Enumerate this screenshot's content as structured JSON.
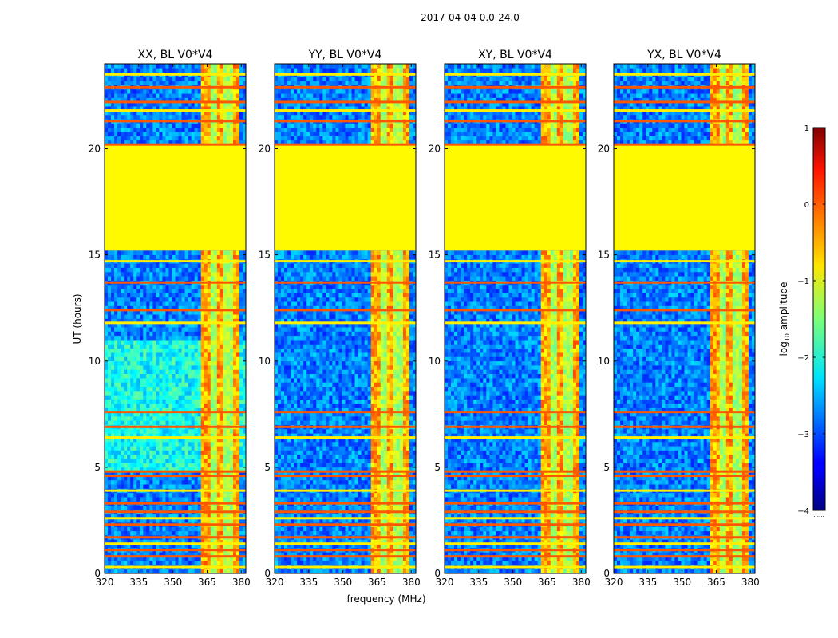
{
  "chart_data": {
    "type": "heatmap",
    "suptitle": "2017-04-04 0.0-24.0",
    "xlabel": "frequency (MHz)",
    "ylabel": "UT (hours)",
    "xlim": [
      320,
      382
    ],
    "ylim": [
      0,
      24
    ],
    "xticks": [
      320,
      335,
      350,
      365,
      380
    ],
    "yticks": [
      0,
      5,
      10,
      15,
      20
    ],
    "panels": [
      {
        "title": "XX, BL V0*V4"
      },
      {
        "title": "YY, BL V0*V4"
      },
      {
        "title": "XY, BL V0*V4"
      },
      {
        "title": "YX, BL V0*V4"
      }
    ],
    "flagged_gap_hours": [
      15.2,
      20.2
    ],
    "rfi_band_mhz": [
      362.5,
      379.5
    ],
    "strong_rfi_hours": [
      0.3,
      0.8,
      1.1,
      1.4,
      1.7,
      2.3,
      2.6,
      2.9,
      3.3,
      3.9,
      4.6,
      4.8,
      6.4,
      6.9,
      7.6,
      11.8,
      12.4,
      13.7,
      14.7,
      20.2,
      21.3,
      21.8,
      22.2,
      22.9,
      23.5
    ],
    "colorbar": {
      "label": "log",
      "label_sub": "10",
      "label_suffix": " amplitude",
      "range": [
        -4,
        1
      ],
      "ticks": [
        1,
        0,
        -1,
        -2,
        -3,
        -4
      ],
      "colormap": "jet"
    },
    "bottom_note": "......"
  }
}
